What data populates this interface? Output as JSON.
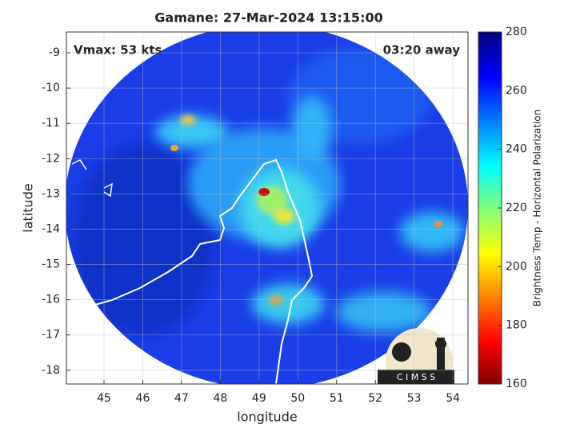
{
  "chart_data": {
    "type": "map",
    "title": "Gamane: 27-Mar-2024 13:15:00",
    "annotations": [
      "Vmax: 53 kts",
      "03:20 away"
    ],
    "xlabel": "longitude",
    "ylabel": "latitude",
    "xlim": [
      44.03,
      54.39
    ],
    "xticks": [
      45,
      46,
      47,
      48,
      49,
      50,
      51,
      52,
      53,
      54
    ],
    "ylim": [
      -18.39,
      -8.41
    ],
    "yticks": [
      -9,
      -10,
      -11,
      -12,
      -13,
      -14,
      -15,
      -16,
      -17,
      -18
    ],
    "grid": true,
    "colorbar": {
      "label": "Brightness Temp - Horizontal Polarization",
      "lim": [
        160,
        280
      ],
      "ticks": [
        160,
        180,
        200,
        220,
        240,
        260,
        280
      ]
    },
    "logo": "C I M S S"
  }
}
